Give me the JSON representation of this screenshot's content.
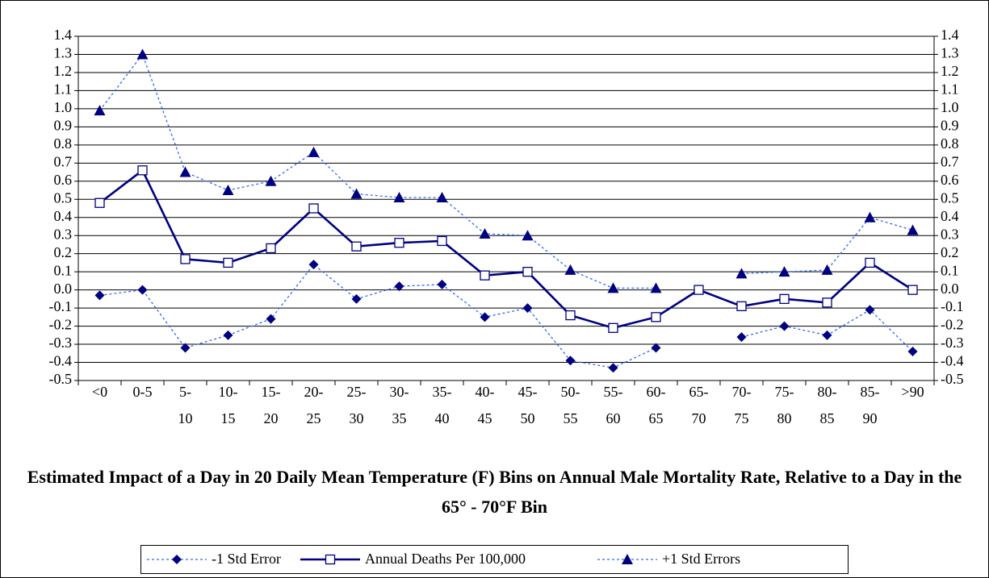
{
  "chart_data": {
    "type": "line",
    "title": "Estimated Impact of a Day in 20 Daily Mean Temperature (F) Bins on Annual Male Mortality Rate, Relative to a Day in the 65° - 70°F Bin",
    "categories": [
      "<0",
      "0-5",
      "5-10",
      "10-15",
      "15-20",
      "20-25",
      "25-30",
      "30-35",
      "35-40",
      "40-45",
      "45-50",
      "50-55",
      "55-60",
      "60-65",
      "65-70",
      "70-75",
      "75-80",
      "80-85",
      "85-90",
      ">90"
    ],
    "series": [
      {
        "name": "-1 Std Error",
        "color": "#3366ff",
        "marker_color": "#000080",
        "marker": "diamond",
        "dashed": true,
        "values": [
          -0.03,
          0.0,
          -0.32,
          -0.25,
          -0.16,
          0.14,
          -0.05,
          0.02,
          0.03,
          -0.15,
          -0.1,
          -0.39,
          -0.43,
          -0.32,
          null,
          -0.26,
          -0.2,
          -0.25,
          -0.11,
          -0.34
        ]
      },
      {
        "name": "Annual Deaths Per 100,000",
        "color": "#000080",
        "marker_color": "#000080",
        "marker": "square",
        "dashed": false,
        "values": [
          0.48,
          0.66,
          0.17,
          0.15,
          0.23,
          0.45,
          0.24,
          0.26,
          0.27,
          0.08,
          0.1,
          -0.14,
          -0.21,
          -0.15,
          0.0,
          -0.09,
          -0.05,
          -0.07,
          0.15,
          0.0
        ]
      },
      {
        "name": "+1 Std Errors",
        "color": "#3366ff",
        "marker_color": "#000080",
        "marker": "triangle",
        "dashed": true,
        "values": [
          0.99,
          1.3,
          0.65,
          0.55,
          0.6,
          0.76,
          0.53,
          0.51,
          0.51,
          0.31,
          0.3,
          0.11,
          0.01,
          0.01,
          null,
          0.09,
          0.1,
          0.11,
          0.4,
          0.33
        ]
      }
    ],
    "ylim": [
      -0.5,
      1.4
    ],
    "yticks": [
      -0.5,
      -0.4,
      -0.3,
      -0.2,
      -0.1,
      {
        "value": 0,
        "label": "0.0"
      },
      0.1,
      0.2,
      0.3,
      0.4,
      0.5,
      0.6,
      0.7,
      0.8,
      0.9,
      {
        "value": 1,
        "label": "1.0"
      },
      1.1,
      1.2,
      1.3,
      1.4
    ],
    "grid": true,
    "legend": "bottom"
  }
}
